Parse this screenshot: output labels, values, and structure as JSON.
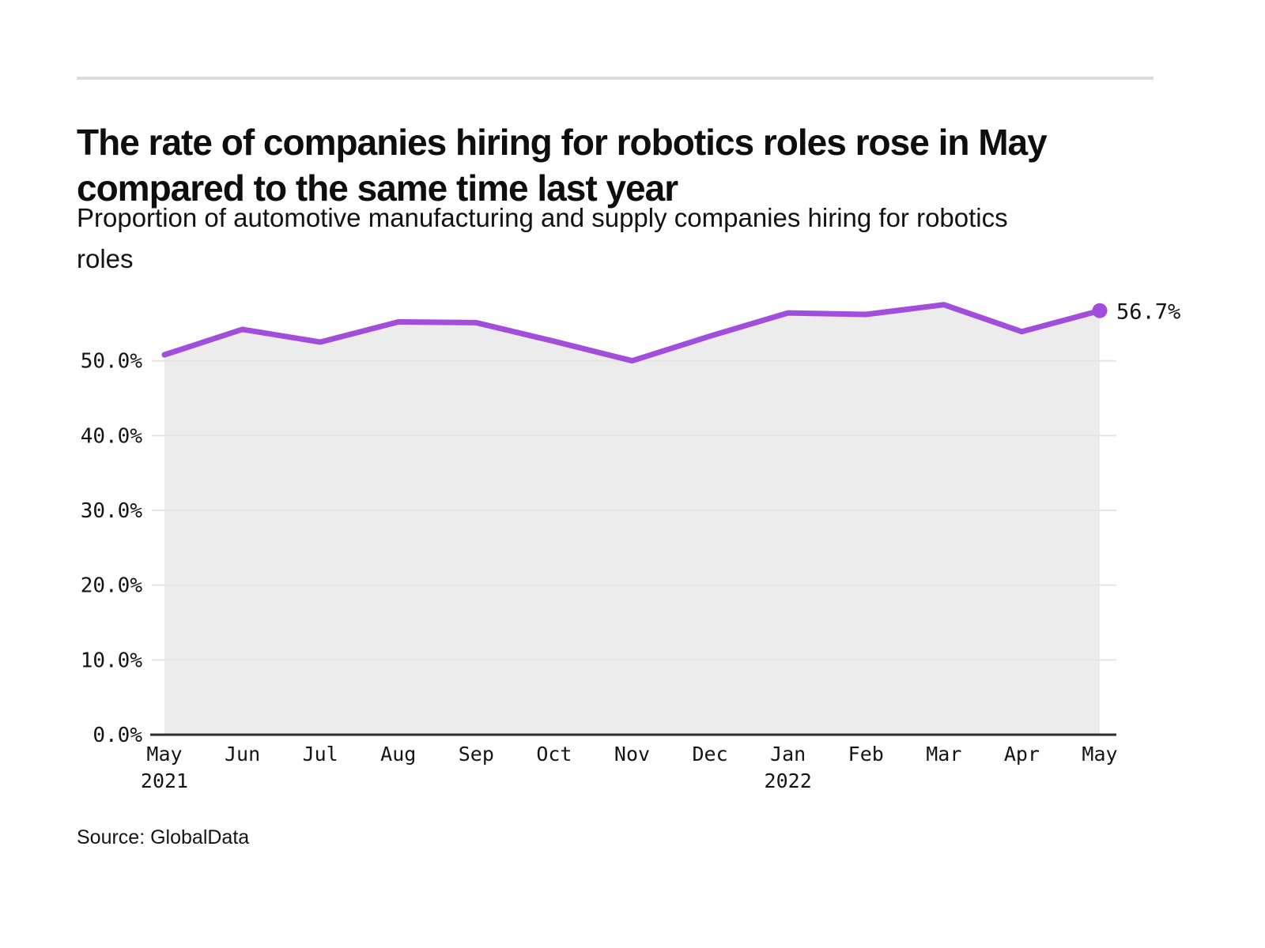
{
  "header": {
    "title": "The rate of companies hiring for robotics roles rose in May compared to the same time last year",
    "subtitle": "Proportion of automotive manufacturing and supply companies hiring for robotics roles"
  },
  "footer": {
    "source": "Source: GlobalData"
  },
  "chart_data": {
    "type": "line",
    "title": "The rate of companies hiring for robotics roles rose in May compared to the same time last year",
    "subtitle": "Proportion of automotive manufacturing and supply companies hiring for robotics roles",
    "categories": [
      "May",
      "Jun",
      "Jul",
      "Aug",
      "Sep",
      "Oct",
      "Nov",
      "Dec",
      "Jan",
      "Feb",
      "Mar",
      "Apr",
      "May"
    ],
    "year_labels": {
      "0": "2021",
      "8": "2022"
    },
    "series": [
      {
        "name": "Proportion of automotive manufacturing and supply companies hiring for robotics roles",
        "values": [
          50.8,
          54.2,
          52.5,
          55.2,
          55.1,
          52.6,
          50.0,
          53.3,
          56.4,
          56.2,
          57.5,
          53.9,
          56.7
        ]
      }
    ],
    "ylim": [
      0,
      60
    ],
    "yticks": [
      {
        "value": 0,
        "label": "0.0%"
      },
      {
        "value": 10,
        "label": "10.0%"
      },
      {
        "value": 20,
        "label": "20.0%"
      },
      {
        "value": 30,
        "label": "30.0%"
      },
      {
        "value": 40,
        "label": "40.0%"
      },
      {
        "value": 50,
        "label": "50.0%"
      }
    ],
    "grid": "horizontal",
    "legend": "none",
    "annotation": {
      "text": "56.7%",
      "point_index": 12
    },
    "colors": {
      "line": "#a24edc",
      "area": "#ececec",
      "grid": "#e4e4e4",
      "axis": "#2d2d2d",
      "tick_text": "#141414"
    }
  }
}
